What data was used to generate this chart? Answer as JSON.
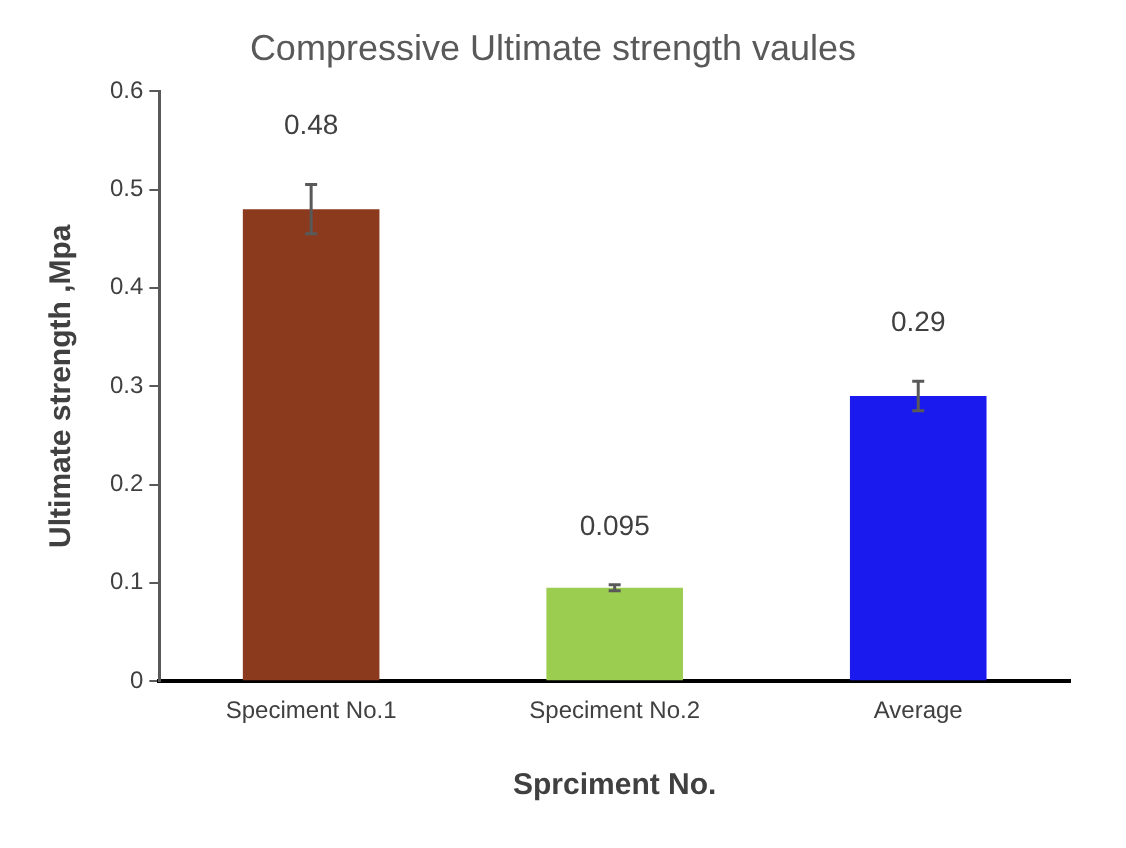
{
  "chart_data": {
    "type": "bar",
    "title": "Compressive Ultimate strength vaules",
    "xlabel": "Sprciment No.",
    "ylabel": "Ultimate strength ,Mpa",
    "categories": [
      "Speciment No.1",
      "Speciment No.2",
      "Average"
    ],
    "values": [
      0.48,
      0.095,
      0.29
    ],
    "colors": [
      "#8b3a1e",
      "#9acd50",
      "#1a1aee"
    ],
    "errors": [
      0.025,
      0.003,
      0.015
    ],
    "ylim": [
      0,
      0.6
    ],
    "yticks": [
      0,
      0.1,
      0.2,
      0.3,
      0.4,
      0.5,
      0.6
    ],
    "data_labels": true,
    "grid": false,
    "legend": false
  }
}
